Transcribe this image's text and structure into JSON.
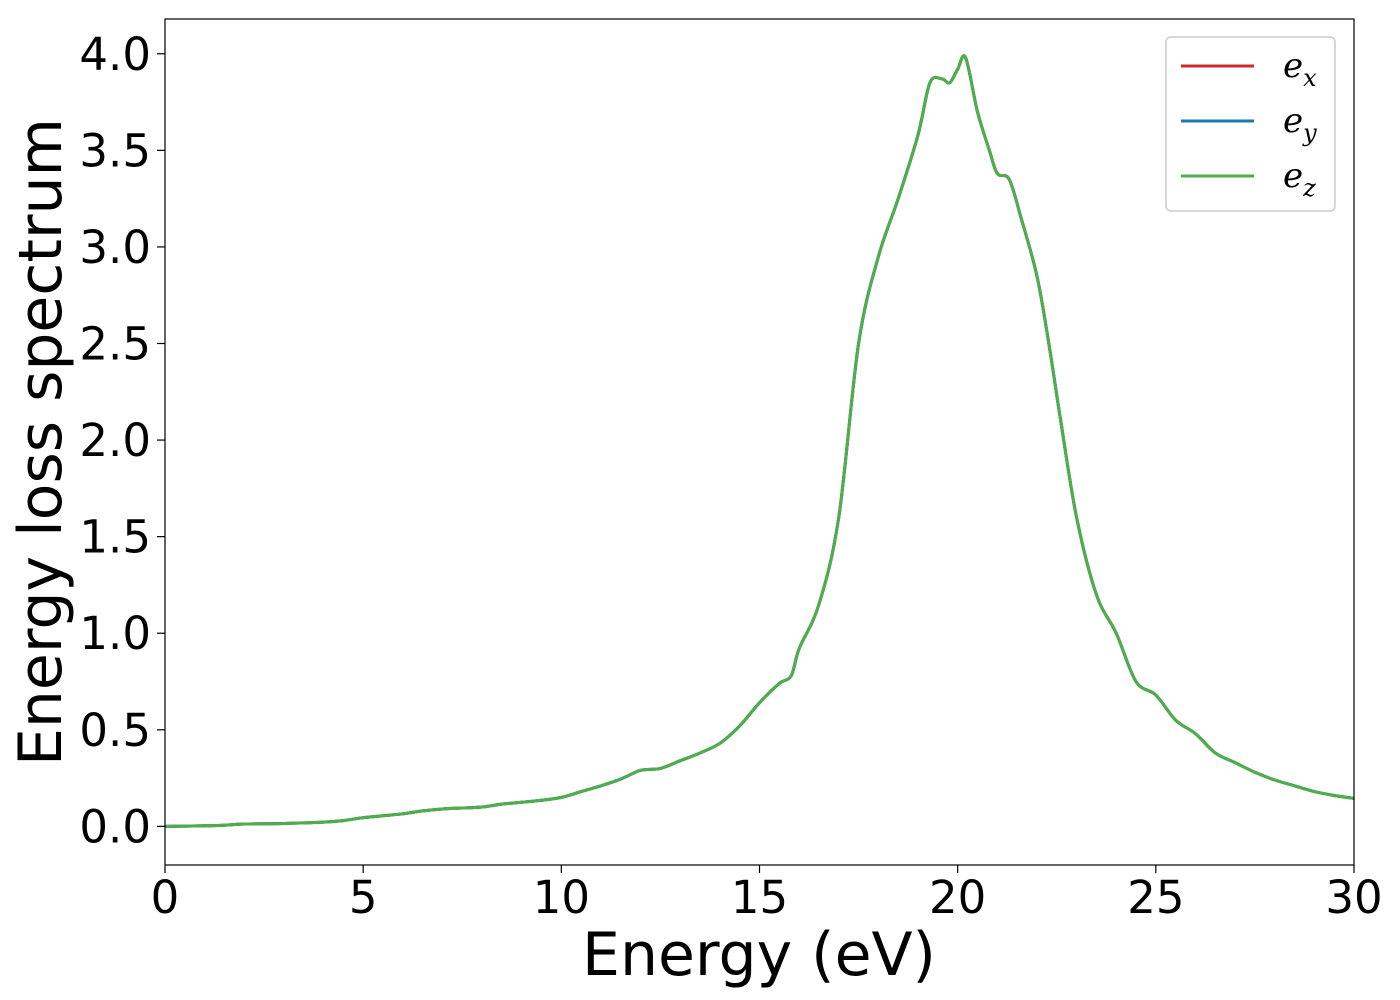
{
  "chart_data": {
    "type": "line",
    "title": "",
    "xlabel": "Energy (eV)",
    "ylabel": "Energy loss spectrum",
    "xlim": [
      0,
      30
    ],
    "ylim": [
      -0.2,
      4.18
    ],
    "xticks": [
      0,
      5,
      10,
      15,
      20,
      25,
      30
    ],
    "xtick_labels": [
      "0",
      "5",
      "10",
      "15",
      "20",
      "25",
      "30"
    ],
    "yticks": [
      0.0,
      0.5,
      1.0,
      1.5,
      2.0,
      2.5,
      3.0,
      3.5,
      4.0
    ],
    "ytick_labels": [
      "0.0",
      "0.5",
      "1.0",
      "1.5",
      "2.0",
      "2.5",
      "3.0",
      "3.5",
      "4.0"
    ],
    "grid": false,
    "legend_position": "top-right",
    "x": [
      0,
      1,
      1.5,
      2,
      3,
      4,
      4.5,
      5,
      5.5,
      6,
      6.5,
      7,
      7.5,
      8,
      8.5,
      9,
      9.5,
      10,
      10.5,
      11,
      11.5,
      12,
      12.5,
      13,
      13.5,
      14,
      14.5,
      15,
      15.5,
      15.8,
      16,
      16.5,
      17,
      17.5,
      18,
      18.5,
      19,
      19.3,
      19.6,
      19.8,
      20,
      20.2,
      20.5,
      20.8,
      21,
      21.3,
      21.6,
      22,
      22.3,
      22.6,
      23,
      23.5,
      24,
      24.5,
      25,
      25.5,
      26,
      26.5,
      27,
      27.5,
      28,
      28.5,
      29,
      29.5,
      30
    ],
    "series": [
      {
        "name": "x",
        "color": "#d62728",
        "values": [
          0,
          0.003,
          0.006,
          0.012,
          0.015,
          0.022,
          0.03,
          0.045,
          0.055,
          0.065,
          0.08,
          0.09,
          0.095,
          0.1,
          0.115,
          0.125,
          0.135,
          0.15,
          0.18,
          0.21,
          0.245,
          0.29,
          0.3,
          0.34,
          0.38,
          0.43,
          0.52,
          0.64,
          0.74,
          0.78,
          0.92,
          1.15,
          1.6,
          2.5,
          2.95,
          3.25,
          3.58,
          3.85,
          3.87,
          3.85,
          3.92,
          3.98,
          3.7,
          3.5,
          3.38,
          3.35,
          3.15,
          2.85,
          2.5,
          2.1,
          1.6,
          1.2,
          1.0,
          0.75,
          0.68,
          0.55,
          0.48,
          0.38,
          0.33,
          0.28,
          0.24,
          0.21,
          0.18,
          0.16,
          0.145
        ]
      },
      {
        "name": "y",
        "color": "#1f77b4",
        "values": [
          0,
          0.003,
          0.006,
          0.012,
          0.015,
          0.022,
          0.03,
          0.045,
          0.055,
          0.065,
          0.08,
          0.09,
          0.095,
          0.1,
          0.115,
          0.125,
          0.135,
          0.15,
          0.18,
          0.21,
          0.245,
          0.29,
          0.3,
          0.34,
          0.38,
          0.43,
          0.52,
          0.64,
          0.74,
          0.78,
          0.92,
          1.15,
          1.6,
          2.5,
          2.95,
          3.25,
          3.58,
          3.85,
          3.87,
          3.85,
          3.92,
          3.98,
          3.7,
          3.5,
          3.38,
          3.35,
          3.15,
          2.85,
          2.5,
          2.1,
          1.6,
          1.2,
          1.0,
          0.75,
          0.68,
          0.55,
          0.48,
          0.38,
          0.33,
          0.28,
          0.24,
          0.21,
          0.18,
          0.16,
          0.145
        ]
      },
      {
        "name": "z",
        "color": "#4daf4a",
        "values": [
          0,
          0.003,
          0.006,
          0.012,
          0.015,
          0.022,
          0.03,
          0.045,
          0.055,
          0.065,
          0.08,
          0.09,
          0.095,
          0.1,
          0.115,
          0.125,
          0.135,
          0.15,
          0.18,
          0.21,
          0.245,
          0.29,
          0.3,
          0.34,
          0.38,
          0.43,
          0.52,
          0.64,
          0.74,
          0.78,
          0.92,
          1.15,
          1.6,
          2.5,
          2.95,
          3.25,
          3.58,
          3.85,
          3.87,
          3.85,
          3.92,
          3.98,
          3.7,
          3.5,
          3.38,
          3.35,
          3.15,
          2.85,
          2.5,
          2.1,
          1.6,
          1.2,
          1.0,
          0.75,
          0.68,
          0.55,
          0.48,
          0.38,
          0.33,
          0.28,
          0.24,
          0.21,
          0.18,
          0.16,
          0.145
        ]
      }
    ],
    "legend": [
      {
        "base": "e",
        "sub": "x",
        "color": "#d62728"
      },
      {
        "base": "e",
        "sub": "y",
        "color": "#1f77b4"
      },
      {
        "base": "e",
        "sub": "z",
        "color": "#4daf4a"
      }
    ]
  }
}
